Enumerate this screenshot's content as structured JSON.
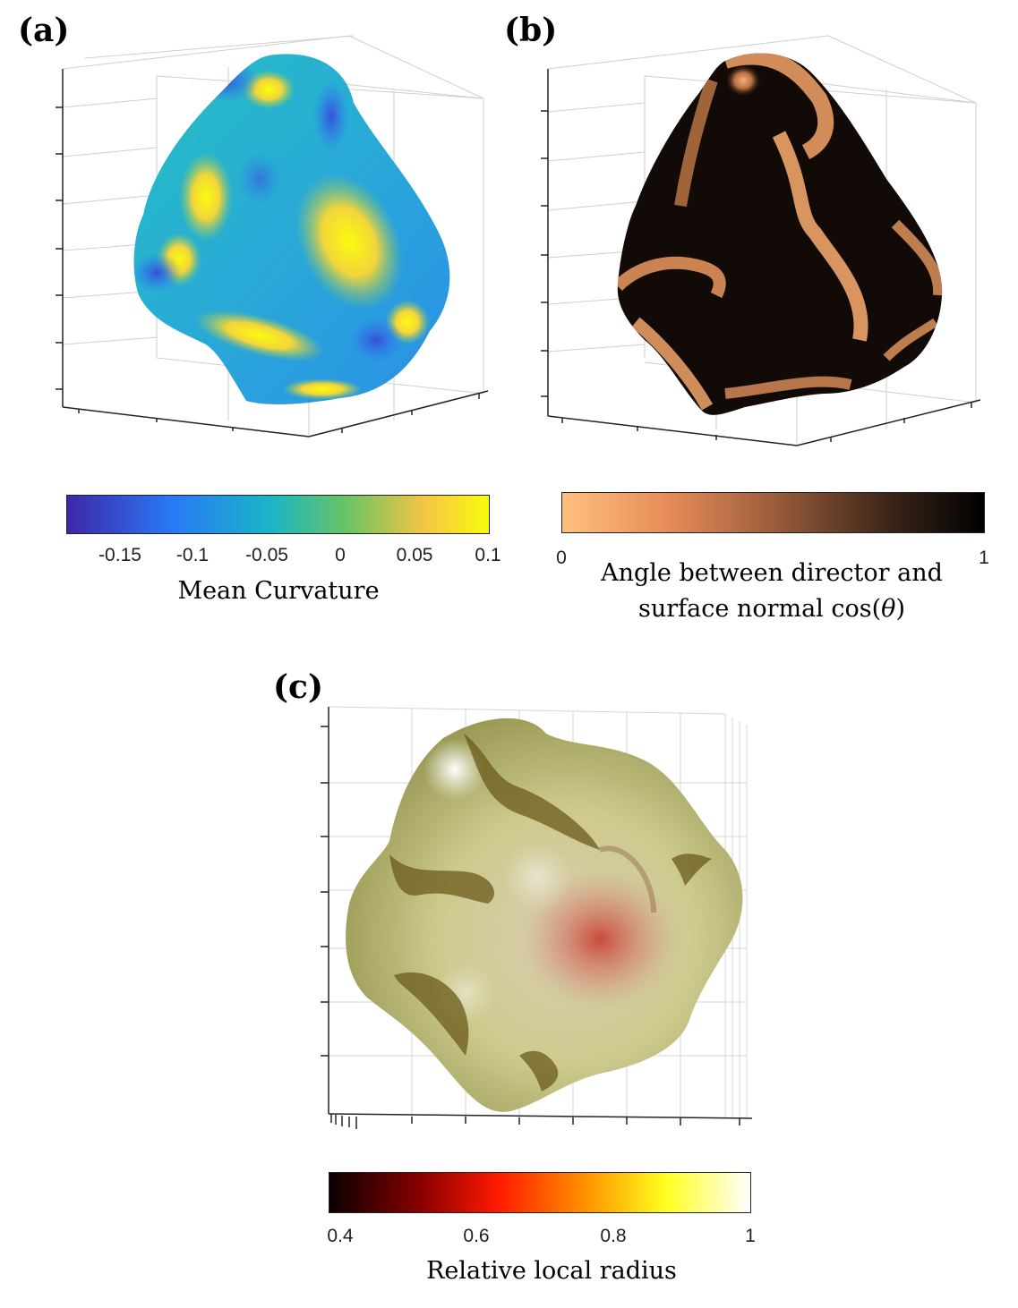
{
  "panels": {
    "a": {
      "letter": "(a)",
      "colorbar": {
        "label": "Mean Curvature",
        "ticks": [
          "-0.15",
          "-0.1",
          "-0.05",
          "0",
          "0.05",
          "0.1"
        ],
        "range": [
          -0.19,
          0.1
        ],
        "colormap": [
          "#3e26a8",
          "#2a79f5",
          "#1ab4c8",
          "#67c466",
          "#f6c544",
          "#f9fb0e"
        ]
      }
    },
    "b": {
      "letter": "(b)",
      "colorbar": {
        "label_line1": "Angle between director and",
        "label_line2": "surface normal cos(",
        "label_theta": "θ",
        "label_close": ")",
        "ticks": [
          "0",
          "1"
        ],
        "range": [
          0,
          1
        ],
        "colormap": [
          "#ffc07f",
          "#e88c58",
          "#9c5d3b",
          "#3a2418",
          "#000000"
        ]
      }
    },
    "c": {
      "letter": "(c)",
      "colorbar": {
        "label": "Relative local radius",
        "ticks": [
          "0.4",
          "0.6",
          "0.8",
          "1"
        ],
        "range": [
          0.4,
          1
        ],
        "colormap": [
          "#0b0000",
          "#8a0000",
          "#ff1a00",
          "#ff9900",
          "#ffff20",
          "#ffffff"
        ]
      }
    }
  }
}
